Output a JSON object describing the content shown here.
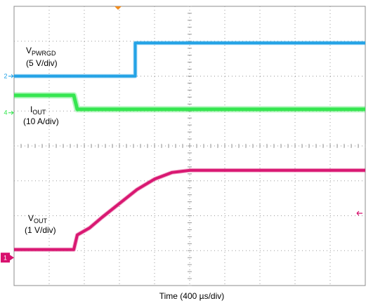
{
  "chart_data": {
    "type": "line",
    "title": "",
    "xlabel": "Time (400 µs/div)",
    "ylabel": "",
    "grid": true,
    "divisions": {
      "x": 10,
      "y": 8
    },
    "x_unit": "µs",
    "xlim": [
      0,
      4000
    ],
    "trigger_marker_color": "#f08c1e",
    "series": [
      {
        "name_main": "V",
        "name_sub": "PWRGD",
        "scale": "(5 V/div)",
        "color": "#1ea0e6",
        "channel_marker": "2",
        "marker_level_div": 6.0,
        "points_div": [
          [
            0,
            6.0
          ],
          [
            1380,
            6.0
          ],
          [
            1380,
            6.95
          ],
          [
            4000,
            6.95
          ]
        ]
      },
      {
        "name_main": "I",
        "name_sub": "OUT",
        "scale": "(10 A/div)",
        "color": "#2ee64a",
        "channel_marker": "4",
        "marker_level_div": 4.95,
        "points_div": [
          [
            0,
            5.45
          ],
          [
            680,
            5.45
          ],
          [
            720,
            5.05
          ],
          [
            4000,
            5.05
          ]
        ]
      },
      {
        "name_main": "V",
        "name_sub": "OUT",
        "scale": "(1 V/div)",
        "color": "#d8106e",
        "channel_marker": "1",
        "marker_level_div": 0.8,
        "points_div": [
          [
            0,
            1.03
          ],
          [
            680,
            1.03
          ],
          [
            720,
            1.45
          ],
          [
            860,
            1.65
          ],
          [
            1000,
            1.95
          ],
          [
            1200,
            2.35
          ],
          [
            1400,
            2.75
          ],
          [
            1600,
            3.05
          ],
          [
            1800,
            3.24
          ],
          [
            2000,
            3.3
          ],
          [
            4000,
            3.3
          ]
        ]
      }
    ]
  }
}
